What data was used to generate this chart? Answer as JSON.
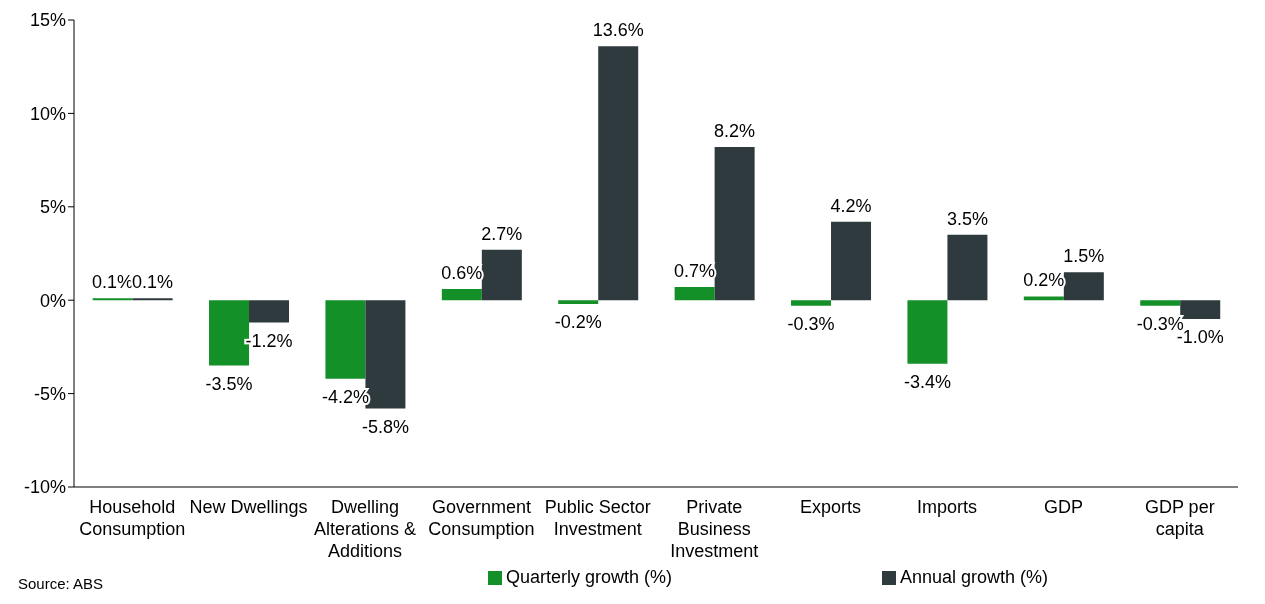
{
  "chart_data": {
    "type": "bar",
    "categories": [
      "Household Consumption",
      "New Dwellings",
      "Dwelling Alterations & Additions",
      "Government Consumption",
      "Public Sector Investment",
      "Private Business Investment",
      "Exports",
      "Imports",
      "GDP",
      "GDP per capita"
    ],
    "series": [
      {
        "name": "Quarterly growth (%)",
        "color": "#149028",
        "values": [
          0.1,
          -3.5,
          -4.2,
          0.6,
          -0.2,
          0.7,
          -0.3,
          -3.4,
          0.2,
          -0.3
        ],
        "value_labels": [
          "0.1%",
          "-3.5%",
          "-4.2%",
          "0.6%",
          "-0.2%",
          "0.7%",
          "-0.3%",
          "-3.4%",
          "0.2%",
          "-0.3%"
        ]
      },
      {
        "name": "Annual growth (%)",
        "color": "#2e3a3e",
        "values": [
          0.1,
          -1.2,
          -5.8,
          2.7,
          13.6,
          8.2,
          4.2,
          3.5,
          1.5,
          -1.0
        ],
        "value_labels": [
          "0.1%",
          "-1.2%",
          "-5.8%",
          "2.7%",
          "13.6%",
          "8.2%",
          "4.2%",
          "3.5%",
          "1.5%",
          "-1.0%"
        ]
      }
    ],
    "ylim": [
      -10,
      15
    ],
    "yticks": [
      {
        "value": -10,
        "label": "-10%"
      },
      {
        "value": -5,
        "label": "-5%"
      },
      {
        "value": 0,
        "label": "0%"
      },
      {
        "value": 5,
        "label": "5%"
      },
      {
        "value": 10,
        "label": "10%"
      },
      {
        "value": 15,
        "label": "15%"
      }
    ],
    "grid": false,
    "legend": "bottom",
    "annotations": [
      "Source: ABS"
    ]
  }
}
